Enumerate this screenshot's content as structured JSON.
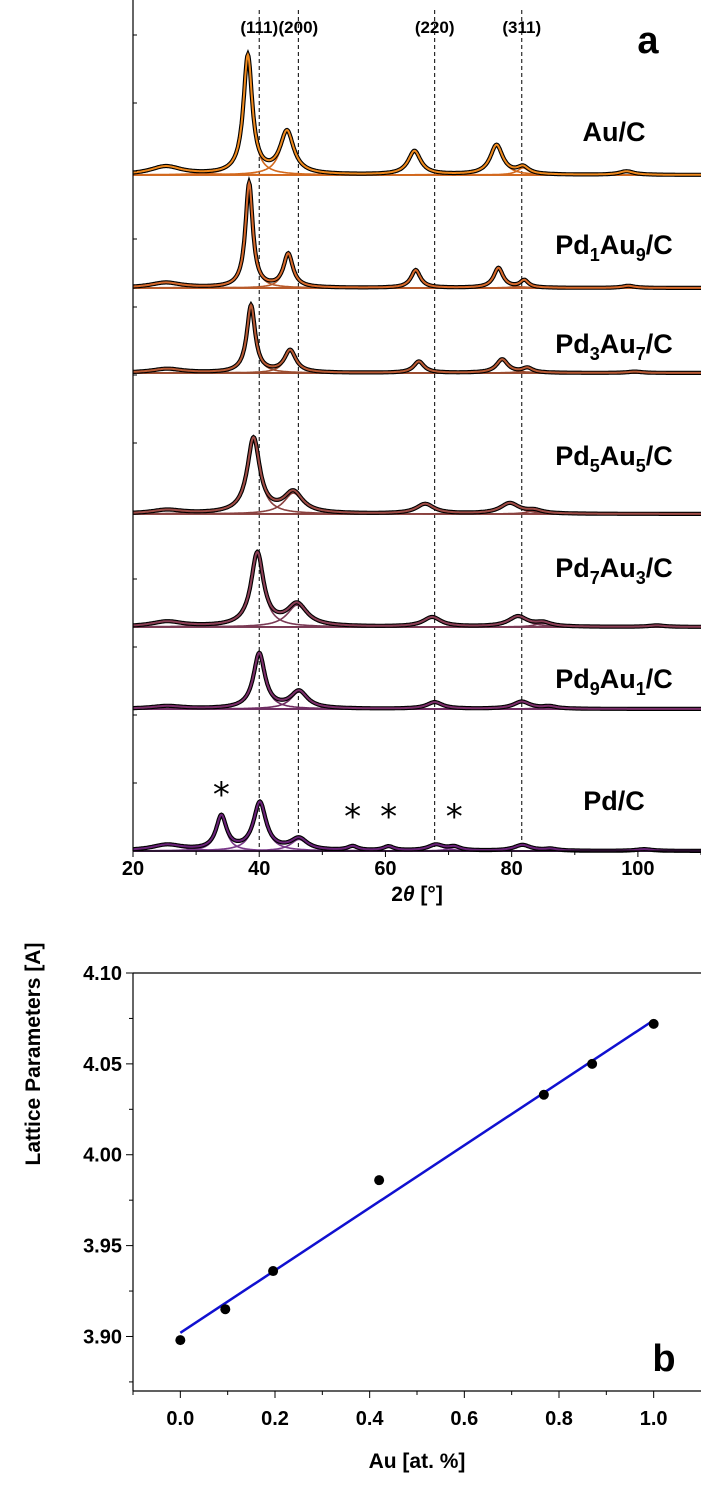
{
  "chart_data": [
    {
      "type": "line",
      "panel_label": "a",
      "xlabel_prefix": "2",
      "xlabel_symbol": "θ",
      "xlabel_suffix": " [°]",
      "xlim": [
        20,
        110
      ],
      "xticks": [
        "20",
        "40",
        "60",
        "80",
        "100"
      ],
      "grid": false,
      "reference_lines": [
        {
          "label": "(111)",
          "x": 40.0
        },
        {
          "label": "(200)",
          "x": 46.2
        },
        {
          "label": "(220)",
          "x": 67.8
        },
        {
          "label": "(311)",
          "x": 81.6
        }
      ],
      "impurity_markers": {
        "symbol": "*",
        "x": [
          34.0,
          54.8,
          60.5,
          70.9
        ]
      },
      "series": [
        {
          "name": "Au/C",
          "formula": [
            [
              "Au/C",
              ""
            ]
          ],
          "color": "#f08a1e",
          "peak_color": "#d2691e",
          "peaks": [
            [
              25.2,
              0.07,
              3.0
            ],
            [
              38.2,
              1.0,
              0.85
            ],
            [
              44.4,
              0.36,
              1.3
            ],
            [
              64.6,
              0.2,
              1.2
            ],
            [
              77.6,
              0.25,
              1.2
            ],
            [
              81.8,
              0.06,
              1.1
            ],
            [
              98.2,
              0.03,
              1.4
            ]
          ]
        },
        {
          "name": "Pd1Au9/C",
          "formula": [
            [
              "Pd",
              ""
            ],
            [
              "1",
              "sub"
            ],
            [
              "Au",
              ""
            ],
            [
              "9",
              "sub"
            ],
            [
              "/C",
              ""
            ]
          ],
          "color": "#d7692a",
          "peak_color": "#b85a2a",
          "peaks": [
            [
              25.2,
              0.05,
              3.0
            ],
            [
              38.4,
              1.0,
              0.7
            ],
            [
              44.6,
              0.32,
              0.9
            ],
            [
              64.8,
              0.17,
              0.9
            ],
            [
              77.9,
              0.19,
              0.9
            ],
            [
              82.0,
              0.07,
              0.8
            ],
            [
              98.5,
              0.02,
              1.2
            ]
          ]
        },
        {
          "name": "Pd3Au7/C",
          "formula": [
            [
              "Pd",
              ""
            ],
            [
              "3",
              "sub"
            ],
            [
              "Au",
              ""
            ],
            [
              "7",
              "sub"
            ],
            [
              "/C",
              ""
            ]
          ],
          "color": "#b95a34",
          "peak_color": "#9b4d30",
          "peaks": [
            [
              25.4,
              0.06,
              3.0
            ],
            [
              38.7,
              1.0,
              0.8
            ],
            [
              44.9,
              0.33,
              1.1
            ],
            [
              65.3,
              0.17,
              1.0
            ],
            [
              78.5,
              0.2,
              1.1
            ],
            [
              82.5,
              0.07,
              1.0
            ],
            [
              99.5,
              0.02,
              1.3
            ]
          ]
        },
        {
          "name": "Pd5Au5/C",
          "formula": [
            [
              "Pd",
              ""
            ],
            [
              "5",
              "sub"
            ],
            [
              "Au",
              ""
            ],
            [
              "5",
              "sub"
            ],
            [
              "/C",
              ""
            ]
          ],
          "color": "#a04c46",
          "peak_color": "#8a4240",
          "peaks": [
            [
              25.4,
              0.05,
              3.0
            ],
            [
              39.1,
              1.0,
              1.2
            ],
            [
              45.4,
              0.28,
              1.8
            ],
            [
              66.3,
              0.13,
              1.7
            ],
            [
              79.7,
              0.14,
              1.8
            ],
            [
              83.6,
              0.04,
              1.5
            ]
          ]
        },
        {
          "name": "Pd7Au3/C",
          "formula": [
            [
              "Pd",
              ""
            ],
            [
              "7",
              "sub"
            ],
            [
              "Au",
              ""
            ],
            [
              "3",
              "sub"
            ],
            [
              "/C",
              ""
            ]
          ],
          "color": "#8c3f56",
          "peak_color": "#7a3a55",
          "peaks": [
            [
              25.4,
              0.07,
              3.0
            ],
            [
              39.7,
              1.0,
              1.2
            ],
            [
              46.0,
              0.3,
              1.9
            ],
            [
              67.4,
              0.13,
              1.7
            ],
            [
              81.0,
              0.14,
              1.8
            ],
            [
              85.0,
              0.05,
              1.5
            ],
            [
              103.0,
              0.02,
              1.5
            ]
          ]
        },
        {
          "name": "Pd9Au1/C",
          "formula": [
            [
              "Pd",
              ""
            ],
            [
              "9",
              "sub"
            ],
            [
              "Au",
              ""
            ],
            [
              "1",
              "sub"
            ],
            [
              "/C",
              ""
            ]
          ],
          "color": "#7b2e6a",
          "peak_color": "#6e2c62",
          "peaks": [
            [
              25.4,
              0.05,
              3.0
            ],
            [
              40.0,
              1.0,
              1.1
            ],
            [
              46.3,
              0.31,
              1.6
            ],
            [
              67.8,
              0.12,
              1.5
            ],
            [
              81.6,
              0.13,
              1.6
            ],
            [
              86.0,
              0.04,
              1.4
            ]
          ]
        },
        {
          "name": "Pd/C",
          "formula": [
            [
              "Pd/C",
              ""
            ]
          ],
          "color": "#6a2278",
          "peak_color": "#7a3a8a",
          "peaks": [
            [
              25.4,
              0.1,
              3.0
            ],
            [
              34.0,
              0.58,
              1.0
            ],
            [
              40.1,
              0.82,
              1.2
            ],
            [
              46.3,
              0.2,
              1.6
            ],
            [
              54.8,
              0.07,
              1.0
            ],
            [
              60.5,
              0.07,
              1.0
            ],
            [
              68.0,
              0.1,
              1.5
            ],
            [
              70.9,
              0.06,
              1.2
            ],
            [
              81.7,
              0.1,
              1.6
            ],
            [
              86.2,
              0.03,
              1.3
            ],
            [
              101.0,
              0.03,
              1.5
            ]
          ]
        }
      ]
    },
    {
      "type": "scatter",
      "panel_label": "b",
      "xlabel": "Au [at. %]",
      "ylabel": "Lattice Parameters [A]",
      "xlim": [
        -0.1,
        1.1
      ],
      "ylim": [
        3.87,
        4.1
      ],
      "xticks": [
        "0.0",
        "0.2",
        "0.4",
        "0.6",
        "0.8",
        "1.0"
      ],
      "yticks": [
        "3.90",
        "3.95",
        "4.00",
        "4.05",
        "4.10"
      ],
      "grid": false,
      "points": [
        {
          "x": 0.0,
          "y": 3.898
        },
        {
          "x": 0.095,
          "y": 3.915
        },
        {
          "x": 0.196,
          "y": 3.936
        },
        {
          "x": 0.42,
          "y": 3.986
        },
        {
          "x": 0.768,
          "y": 4.033
        },
        {
          "x": 0.87,
          "y": 4.05
        },
        {
          "x": 1.0,
          "y": 4.072
        }
      ],
      "fit_line": {
        "color": "#1010d0",
        "x": [
          0.0,
          1.0
        ],
        "y": [
          3.902,
          4.074
        ]
      }
    }
  ]
}
